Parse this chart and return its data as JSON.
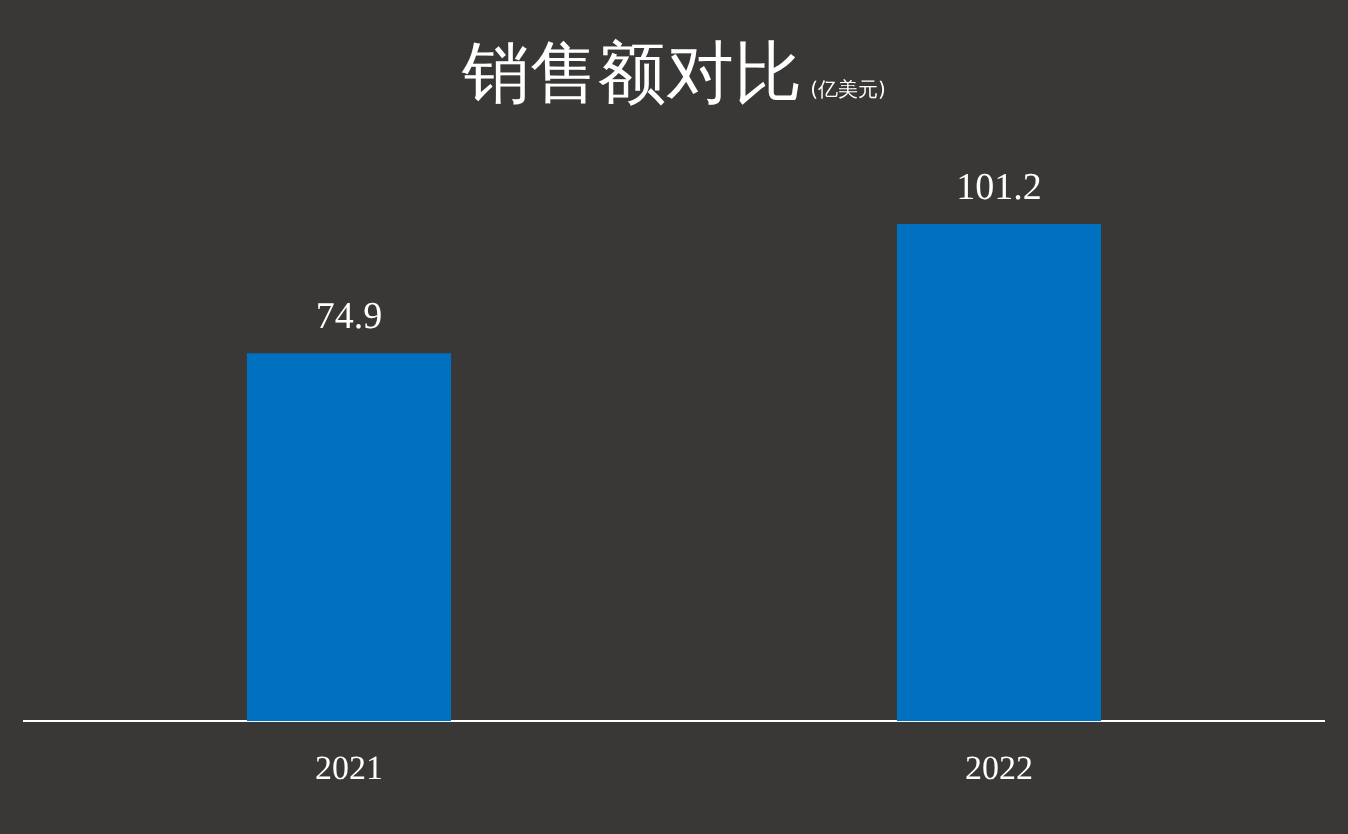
{
  "chart_data": {
    "type": "bar",
    "title": "销售额对比",
    "subtitle": "(亿美元)",
    "categories": [
      "2021",
      "2022"
    ],
    "values": [
      74.9,
      101.2
    ],
    "color": "#0070c0",
    "data_labels": true
  }
}
